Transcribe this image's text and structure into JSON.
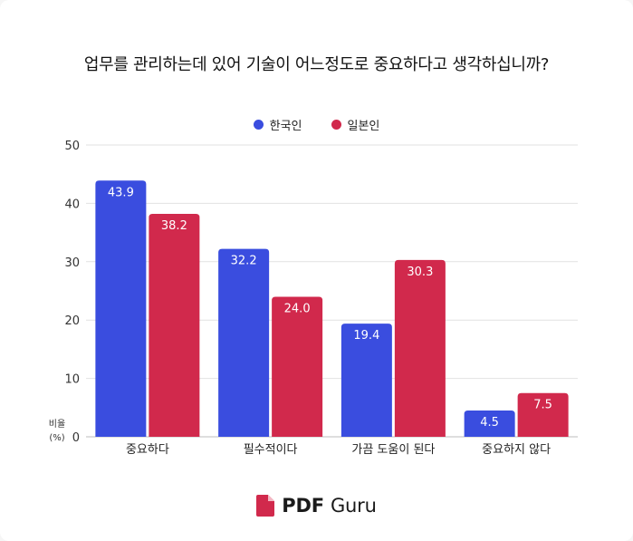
{
  "chart_data": {
    "type": "bar",
    "title": "업무를 관리하는데 있어 기술이 어느정도로 중요하다고 생각하십니까?",
    "ylabel_line1": "비율",
    "ylabel_line2": "(%)",
    "ylim": [
      0,
      50
    ],
    "yticks": [
      "0",
      "10",
      "20",
      "30",
      "40",
      "50"
    ],
    "categories": [
      "중요하다",
      "필수적이다",
      "가끔 도움이 된다",
      "중요하지 않다"
    ],
    "series": [
      {
        "name": "한국인",
        "color": "#3a4ddf",
        "values": [
          43.9,
          32.2,
          19.4,
          4.5
        ],
        "labels": [
          "43.9",
          "32.2",
          "19.4",
          "4.5"
        ]
      },
      {
        "name": "일본인",
        "color": "#d1294c",
        "values": [
          38.2,
          24.0,
          30.3,
          7.5
        ],
        "labels": [
          "38.2",
          "24.0",
          "30.3",
          "7.5"
        ]
      }
    ],
    "grid": true,
    "legend_position": "top"
  },
  "brand": {
    "logo_icon": "pdf-file-icon",
    "name_bold": "PDF",
    "name_rest": "Guru",
    "color": "#d1294c"
  }
}
